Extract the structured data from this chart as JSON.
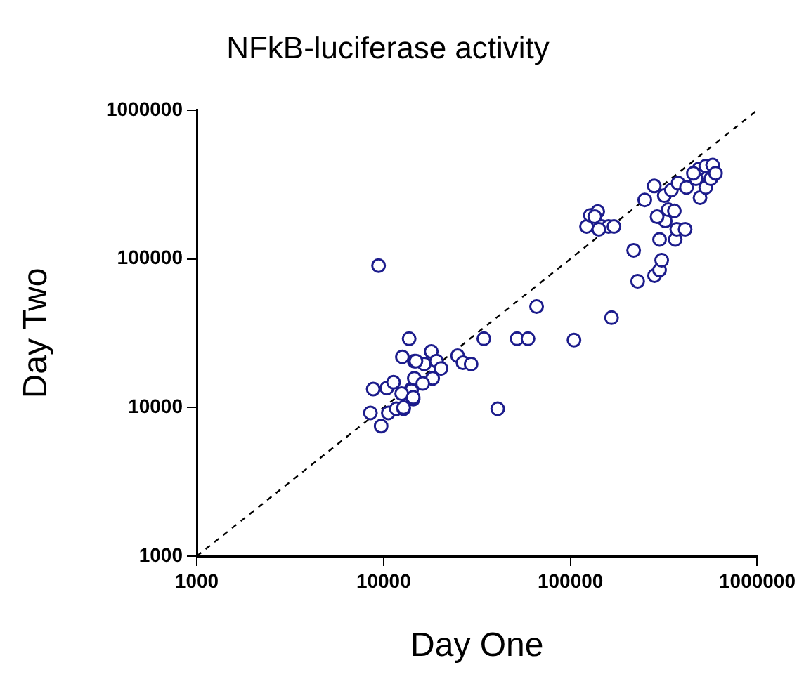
{
  "chart_data": {
    "type": "scatter",
    "title": "NFkB-luciferase activity",
    "xlabel": "Day One",
    "ylabel": "Day Two",
    "log": "xy",
    "grid": false,
    "legend": false,
    "marker": "circle",
    "xlim": [
      1000,
      1000000
    ],
    "ylim": [
      1000,
      1000000
    ],
    "xticks": [
      1000,
      10000,
      100000,
      1000000
    ],
    "yticks": [
      1000,
      10000,
      100000,
      1000000
    ],
    "series": [
      {
        "color": "#1c1c8c",
        "x": [
          9400,
          13700,
          12600,
          8800,
          8500,
          9700,
          10600,
          10400,
          11300,
          11700,
          12800,
          14100,
          14400,
          14600,
          18000,
          16500,
          19200,
          20300,
          18300,
          14900,
          14600,
          16200,
          14100,
          12500,
          14400,
          12800,
          24900,
          26600,
          29400,
          34400,
          51800,
          59300,
          65900,
          40800,
          104500,
          166000,
          229000,
          218000,
          282000,
          300000,
          308000,
          300000,
          364000,
          371000,
          411000,
          322000,
          291000,
          334000,
          360000,
          250000,
          281000,
          318000,
          347000,
          377000,
          418000,
          487000,
          530000,
          577000,
          494000,
          530000,
          564000,
          598000,
          470000,
          455000,
          122000,
          128000,
          140000,
          135000,
          147000,
          160000,
          171000,
          142000
        ],
        "values": [
          90000,
          29000,
          21900,
          13300,
          9200,
          7500,
          9200,
          13500,
          14800,
          9800,
          9800,
          13300,
          11400,
          20500,
          23800,
          19600,
          20500,
          18300,
          15700,
          20500,
          15700,
          14500,
          13000,
          12400,
          11700,
          10000,
          22300,
          20000,
          19600,
          29000,
          29000,
          29000,
          47800,
          9800,
          28400,
          40200,
          70600,
          114000,
          77100,
          84000,
          97800,
          135000,
          135000,
          158000,
          158000,
          180000,
          192000,
          214000,
          210000,
          249000,
          309000,
          266000,
          290000,
          323000,
          302000,
          402000,
          420000,
          427000,
          258000,
          302000,
          346000,
          376000,
          346000,
          376000,
          165000,
          196000,
          208000,
          192000,
          165000,
          165000,
          165000,
          158000
        ]
      },
      {
        "type": "line",
        "color": "#000000",
        "line_style": "dashed",
        "marker": "none",
        "x": [
          1000,
          1000000
        ],
        "values": [
          1000,
          1000000
        ]
      }
    ]
  }
}
